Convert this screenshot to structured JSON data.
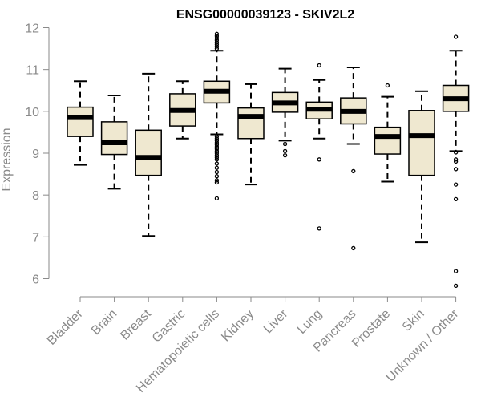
{
  "chart_data": {
    "type": "boxplot",
    "title": "ENSG00000039123 - SKIV2L2",
    "ylabel": "Expression",
    "xlabel": "",
    "ylim": [
      5.75,
      12.05
    ],
    "yticks": [
      6,
      7,
      8,
      9,
      10,
      11,
      12
    ],
    "grid": false,
    "box_fill": "#efe8d0",
    "box_stroke": "#000000",
    "median_color": "#000000",
    "axis_color": "#8a8a8a",
    "categories": [
      "Bladder",
      "Brain",
      "Breast",
      "Gastric",
      "Hematopoietic cells",
      "Kidney",
      "Liver",
      "Lung",
      "Pancreas",
      "Prostate",
      "Skin",
      "Unknown / Other"
    ],
    "boxes": [
      {
        "category": "Bladder",
        "whisker_low": 8.72,
        "q1": 9.4,
        "median": 9.85,
        "q3": 10.1,
        "whisker_high": 10.72,
        "outliers": []
      },
      {
        "category": "Brain",
        "whisker_low": 8.15,
        "q1": 8.97,
        "median": 9.25,
        "q3": 9.75,
        "whisker_high": 10.38,
        "outliers": []
      },
      {
        "category": "Breast",
        "whisker_low": 7.02,
        "q1": 8.47,
        "median": 8.9,
        "q3": 9.55,
        "whisker_high": 10.9,
        "outliers": []
      },
      {
        "category": "Gastric",
        "whisker_low": 9.35,
        "q1": 9.65,
        "median": 10.02,
        "q3": 10.42,
        "whisker_high": 10.72,
        "outliers": []
      },
      {
        "category": "Hematopoietic cells",
        "whisker_low": 9.45,
        "q1": 10.2,
        "median": 10.48,
        "q3": 10.72,
        "whisker_high": 11.45,
        "outliers": [
          11.5,
          11.55,
          11.6,
          11.65,
          11.7,
          11.75,
          11.8,
          11.85,
          9.4,
          9.35,
          9.3,
          9.25,
          9.2,
          9.15,
          9.1,
          9.05,
          9.0,
          8.95,
          8.9,
          8.85,
          8.75,
          8.65,
          8.55,
          8.45,
          8.35,
          8.3,
          7.92
        ]
      },
      {
        "category": "Kidney",
        "whisker_low": 8.25,
        "q1": 9.35,
        "median": 9.88,
        "q3": 10.08,
        "whisker_high": 10.65,
        "outliers": []
      },
      {
        "category": "Liver",
        "whisker_low": 9.3,
        "q1": 9.98,
        "median": 10.2,
        "q3": 10.45,
        "whisker_high": 11.02,
        "outliers": [
          9.22,
          9.05,
          8.95
        ]
      },
      {
        "category": "Lung",
        "whisker_low": 9.35,
        "q1": 9.82,
        "median": 10.05,
        "q3": 10.22,
        "whisker_high": 10.75,
        "outliers": [
          11.1,
          8.85,
          7.2
        ]
      },
      {
        "category": "Pancreas",
        "whisker_low": 9.22,
        "q1": 9.7,
        "median": 10.0,
        "q3": 10.32,
        "whisker_high": 11.05,
        "outliers": [
          8.57,
          6.73
        ]
      },
      {
        "category": "Prostate",
        "whisker_low": 8.32,
        "q1": 8.98,
        "median": 9.4,
        "q3": 9.62,
        "whisker_high": 10.35,
        "outliers": [
          10.62
        ]
      },
      {
        "category": "Skin",
        "whisker_low": 6.87,
        "q1": 8.47,
        "median": 9.42,
        "q3": 10.02,
        "whisker_high": 10.48,
        "outliers": []
      },
      {
        "category": "Unknown / Other",
        "whisker_low": 9.05,
        "q1": 10.0,
        "median": 10.3,
        "q3": 10.62,
        "whisker_high": 11.45,
        "outliers": [
          11.78,
          9.02,
          8.85,
          8.8,
          8.62,
          8.25,
          7.9,
          6.18,
          5.83
        ]
      }
    ]
  }
}
